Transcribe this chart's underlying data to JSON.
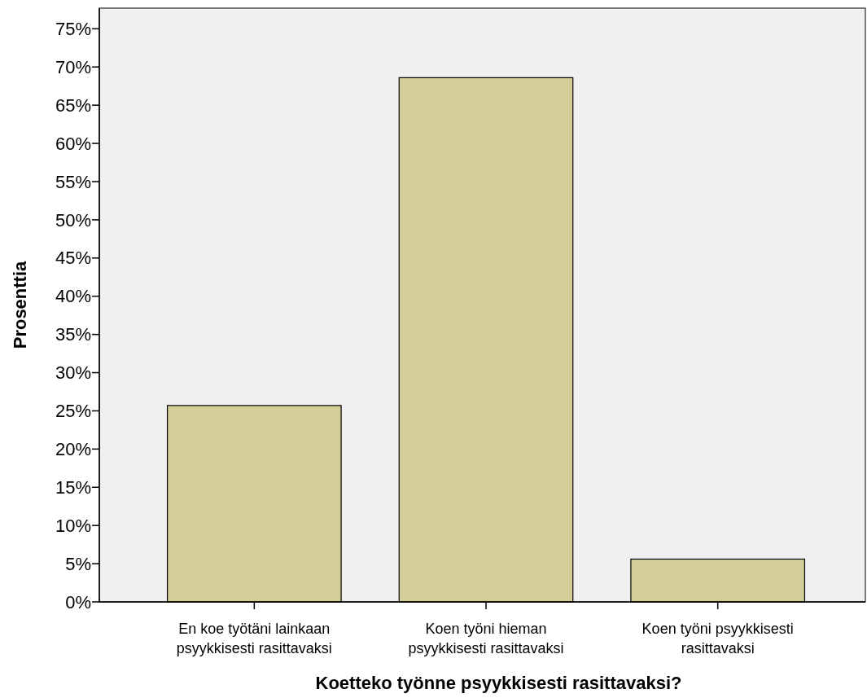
{
  "chart_data": {
    "type": "bar",
    "xlabel": "Koetteko työnne psyykkisesti rasittavaksi?",
    "ylabel": "Prosenttia",
    "categories": [
      "En koe työtäni lainkaan psyykkisesti rasittavaksi",
      "Koen työni hieman psyykkisesti rasittavaksi",
      "Koen työni psyykkisesti rasittavaksi"
    ],
    "values": [
      25.7,
      68.6,
      5.6
    ],
    "color": "#d3ce98",
    "ylim": [
      0,
      77.7
    ],
    "yticks": [
      {
        "value": 0,
        "label": "0%"
      },
      {
        "value": 5,
        "label": "5%"
      },
      {
        "value": 10,
        "label": "10%"
      },
      {
        "value": 15,
        "label": "15%"
      },
      {
        "value": 20,
        "label": "20%"
      },
      {
        "value": 25,
        "label": "25%"
      },
      {
        "value": 30,
        "label": "30%"
      },
      {
        "value": 35,
        "label": "35%"
      },
      {
        "value": 40,
        "label": "40%"
      },
      {
        "value": 45,
        "label": "45%"
      },
      {
        "value": 50,
        "label": "50%"
      },
      {
        "value": 55,
        "label": "55%"
      },
      {
        "value": 60,
        "label": "60%"
      },
      {
        "value": 65,
        "label": "65%"
      },
      {
        "value": 70,
        "label": "70%"
      },
      {
        "value": 75,
        "label": "75%"
      }
    ],
    "grid": false
  }
}
